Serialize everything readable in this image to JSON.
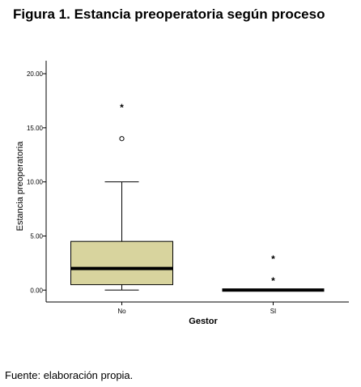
{
  "title": "Figura 1. Estancia preoperatoria según proceso",
  "footer": "Fuente: elaboración propia.",
  "chart_data": {
    "type": "boxplot",
    "xlabel": "Gestor",
    "ylabel": "Estancia preoperatoria",
    "ylim": [
      -1.1,
      21.2
    ],
    "yticks": [
      "0.00",
      "5.00",
      "10.00",
      "15.00",
      "20.00"
    ],
    "ytick_values": [
      0,
      5,
      10,
      15,
      20
    ],
    "categories": [
      "No",
      "SI"
    ],
    "box_color": "#d8d49e",
    "boxes": [
      {
        "category": "No",
        "whisker_low": 0,
        "q1": 0.5,
        "median": 2,
        "q3": 4.5,
        "whisker_high": 10,
        "outliers": [
          {
            "value": 14,
            "marker": "o"
          }
        ],
        "extremes": [
          {
            "value": 17,
            "marker": "*"
          }
        ]
      },
      {
        "category": "SI",
        "whisker_low": 0,
        "q1": 0,
        "median": 0,
        "q3": 0,
        "whisker_high": 0,
        "outliers": [],
        "extremes": [
          {
            "value": 1,
            "marker": "*"
          },
          {
            "value": 3,
            "marker": "*"
          }
        ]
      }
    ]
  }
}
